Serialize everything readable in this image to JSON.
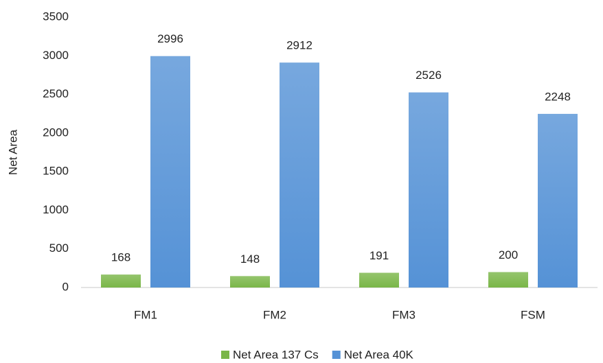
{
  "chart_data": {
    "type": "bar",
    "y_label": "Net Area",
    "categories": [
      "FM1",
      "FM2",
      "FM3",
      "FSM"
    ],
    "series": [
      {
        "name": "Net Area 137 Cs",
        "color": "#7ab648",
        "values": [
          168,
          148,
          191,
          200
        ]
      },
      {
        "name": "Net Area 40K",
        "color": "#5592d6",
        "values": [
          2996,
          2912,
          2526,
          2248
        ]
      }
    ],
    "ylim": [
      0,
      3500
    ],
    "yticks": [
      0,
      500,
      1000,
      1500,
      2000,
      2500,
      3000,
      3500
    ],
    "grid": false,
    "legend": "bottom"
  }
}
